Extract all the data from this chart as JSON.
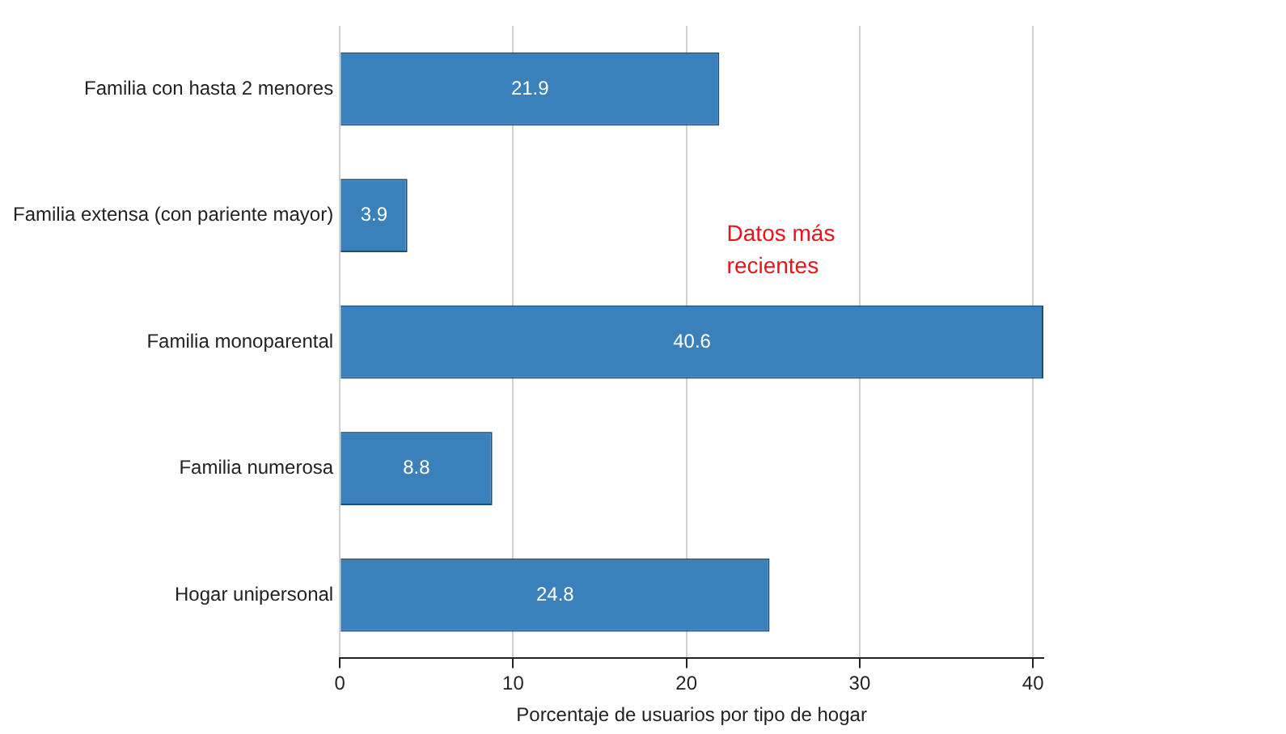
{
  "chart_data": {
    "type": "bar",
    "orientation": "horizontal",
    "categories": [
      "Familia con hasta 2 menores",
      "Familia extensa (con pariente mayor)",
      "Familia monoparental",
      "Familia numerosa",
      "Hogar unipersonal"
    ],
    "values": [
      21.9,
      3.9,
      40.6,
      8.8,
      24.8
    ],
    "color": "#3a80ba",
    "xlim": [
      0,
      40.6
    ],
    "xticks": [
      0,
      10,
      20,
      30,
      40
    ],
    "xlabel": "Porcentaje de usuarios por tipo de hogar",
    "data_labels": true,
    "grid": "x",
    "legend": false,
    "annotations": [
      "Datos más recientes"
    ]
  }
}
